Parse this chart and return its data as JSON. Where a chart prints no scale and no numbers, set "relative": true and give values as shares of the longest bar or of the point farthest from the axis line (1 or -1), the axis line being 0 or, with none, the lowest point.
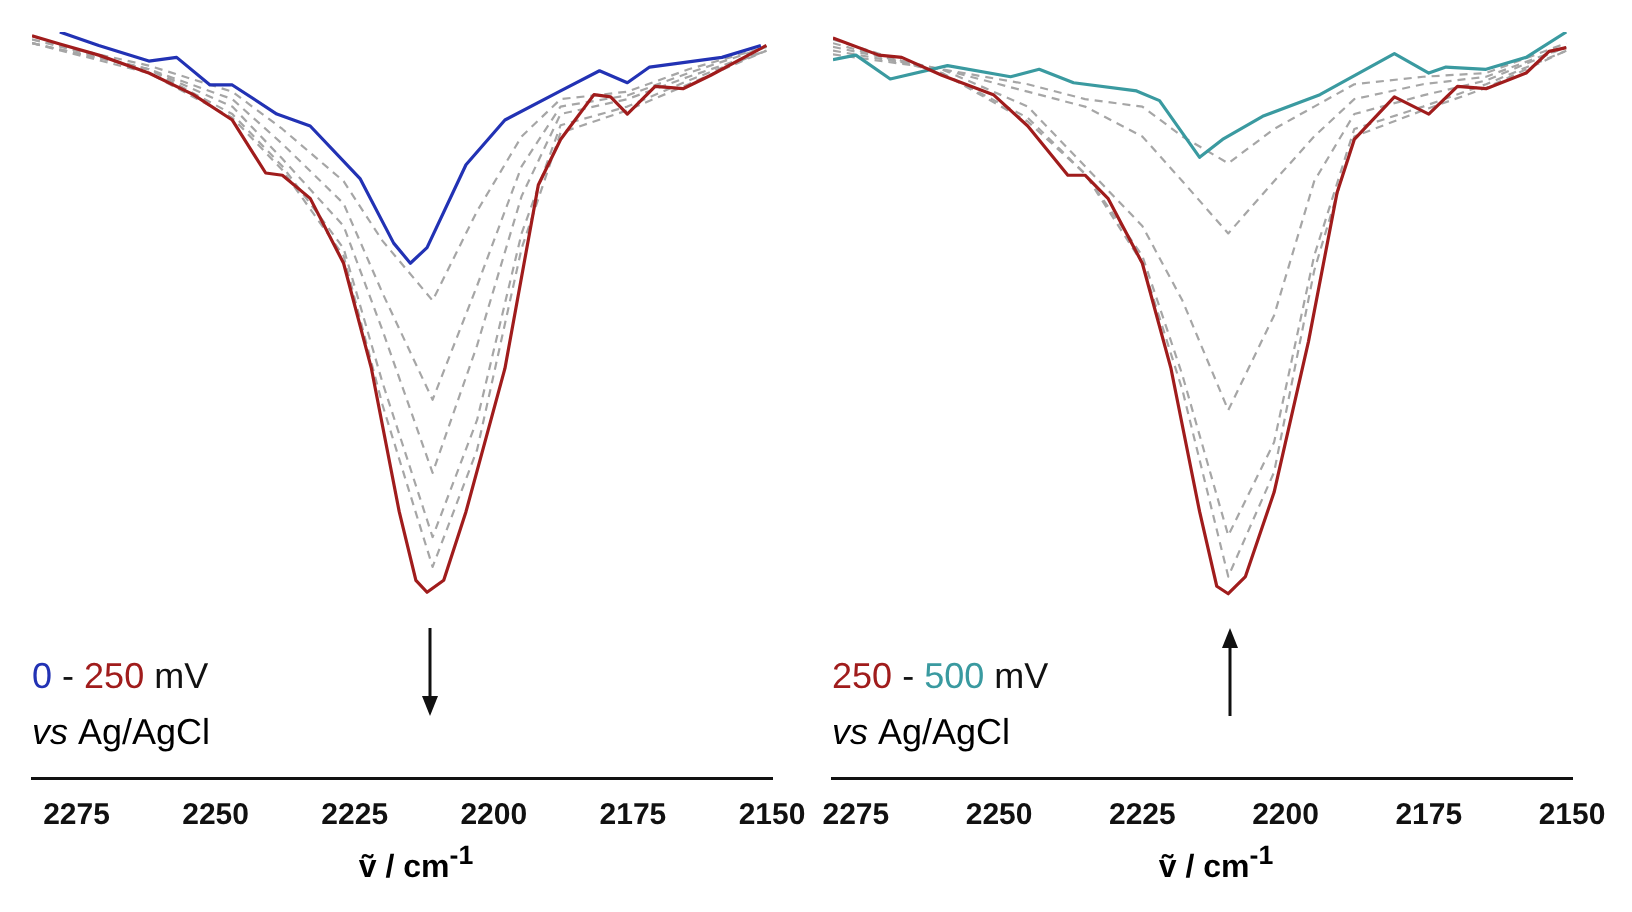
{
  "chart_data": [
    {
      "type": "line",
      "relative": true,
      "xlabel": "ṽ / cm$^{-1}$",
      "xlim": [
        2283,
        2150
      ],
      "xticks": [
        2275,
        2250,
        2225,
        2200,
        2175,
        2150
      ],
      "grid": false,
      "legend": false,
      "marker": "none",
      "annotations": [
        "0 - 250 mV",
        "vs Ag/AgCl"
      ],
      "series": [
        {
          "color": "#2232b4",
          "line_style": "solid",
          "x": [
            2278,
            2271,
            2262,
            2257,
            2251,
            2247,
            2239,
            2233,
            2224,
            2218,
            2215,
            2212,
            2205,
            2198,
            2188,
            2181,
            2176,
            2172,
            2159,
            2152
          ],
          "values": [
            1.0,
            0.982,
            0.961,
            0.966,
            0.929,
            0.929,
            0.89,
            0.874,
            0.803,
            0.717,
            0.69,
            0.711,
            0.822,
            0.882,
            0.921,
            0.948,
            0.932,
            0.953,
            0.966,
            0.982
          ]
        },
        {
          "color": "#a01c1c",
          "line_style": "solid",
          "x": [
            2283,
            2278,
            2271,
            2262,
            2254,
            2247,
            2241,
            2238,
            2233,
            2227,
            2222,
            2217,
            2214,
            2212,
            2209,
            2205,
            2198,
            2192,
            2188,
            2182,
            2179,
            2176,
            2171,
            2166,
            2161,
            2155,
            2151
          ],
          "values": [
            0.995,
            0.984,
            0.969,
            0.945,
            0.916,
            0.882,
            0.811,
            0.808,
            0.777,
            0.69,
            0.549,
            0.357,
            0.265,
            0.249,
            0.265,
            0.357,
            0.549,
            0.795,
            0.856,
            0.916,
            0.913,
            0.89,
            0.927,
            0.924,
            0.942,
            0.966,
            0.982
          ]
        },
        {
          "color": "#a6a6a6",
          "line_style": "dashed",
          "x": [
            2283,
            2262,
            2247,
            2238,
            2227,
            2220,
            2211,
            2203,
            2195,
            2188,
            2176,
            2165,
            2151
          ],
          "values": [
            0.99,
            0.955,
            0.92,
            0.87,
            0.8,
            0.72,
            0.64,
            0.76,
            0.86,
            0.91,
            0.92,
            0.95,
            0.98
          ]
        },
        {
          "color": "#a6a6a6",
          "line_style": "dashed",
          "x": [
            2283,
            2262,
            2247,
            2238,
            2227,
            2220,
            2211,
            2203,
            2195,
            2188,
            2176,
            2165,
            2151
          ],
          "values": [
            0.99,
            0.95,
            0.91,
            0.85,
            0.77,
            0.65,
            0.507,
            0.66,
            0.82,
            0.9,
            0.915,
            0.945,
            0.98
          ]
        },
        {
          "color": "#a6a6a6",
          "line_style": "dashed",
          "x": [
            2283,
            2262,
            2247,
            2238,
            2227,
            2220,
            2211,
            2203,
            2195,
            2188,
            2176,
            2165,
            2151
          ],
          "values": [
            0.985,
            0.95,
            0.9,
            0.83,
            0.74,
            0.6,
            0.409,
            0.58,
            0.78,
            0.89,
            0.91,
            0.94,
            0.975
          ]
        },
        {
          "color": "#a6a6a6",
          "line_style": "dashed",
          "x": [
            2283,
            2262,
            2247,
            2238,
            2227,
            2220,
            2211,
            2203,
            2195,
            2188,
            2176,
            2165,
            2151
          ],
          "values": [
            0.985,
            0.95,
            0.89,
            0.82,
            0.71,
            0.53,
            0.323,
            0.48,
            0.73,
            0.875,
            0.9,
            0.935,
            0.975
          ]
        },
        {
          "color": "#a6a6a6",
          "line_style": "dashed",
          "x": [
            2283,
            2262,
            2247,
            2238,
            2227,
            2220,
            2211,
            2203,
            2195,
            2188,
            2176,
            2165,
            2151
          ],
          "values": [
            0.985,
            0.945,
            0.885,
            0.815,
            0.7,
            0.5,
            0.283,
            0.44,
            0.71,
            0.865,
            0.895,
            0.93,
            0.975
          ]
        }
      ]
    },
    {
      "type": "line",
      "relative": true,
      "xlabel": "ṽ / cm$^{-1}$",
      "xlim": [
        2279,
        2150
      ],
      "xticks": [
        2275,
        2250,
        2225,
        2200,
        2175,
        2150
      ],
      "grid": false,
      "legend": false,
      "marker": "none",
      "annotations": [
        "250 - 500 mV",
        "vs Ag/AgCl"
      ],
      "series": [
        {
          "color": "#a01c1c",
          "line_style": "solid",
          "x": [
            2279,
            2271,
            2267,
            2260,
            2251,
            2245,
            2238,
            2235,
            2231,
            2225,
            2220,
            2215,
            2212,
            2210,
            2207,
            2202,
            2196,
            2191,
            2188,
            2181,
            2175,
            2170,
            2165,
            2158,
            2154,
            2151
          ],
          "values": [
            0.992,
            0.969,
            0.966,
            0.942,
            0.916,
            0.874,
            0.808,
            0.808,
            0.777,
            0.69,
            0.549,
            0.357,
            0.257,
            0.247,
            0.27,
            0.383,
            0.585,
            0.785,
            0.856,
            0.913,
            0.89,
            0.927,
            0.924,
            0.945,
            0.974,
            0.979
          ]
        },
        {
          "color": "#3a9aa0",
          "line_style": "solid",
          "x": [
            2279,
            2275,
            2269,
            2259,
            2248,
            2243,
            2237,
            2226,
            2222,
            2215,
            2211,
            2204,
            2194,
            2181,
            2175,
            2172,
            2165,
            2158,
            2151
          ],
          "values": [
            0.963,
            0.969,
            0.937,
            0.955,
            0.94,
            0.95,
            0.932,
            0.921,
            0.908,
            0.832,
            0.856,
            0.887,
            0.916,
            0.971,
            0.945,
            0.953,
            0.95,
            0.966,
            1.0
          ]
        },
        {
          "color": "#a6a6a6",
          "line_style": "dashed",
          "x": [
            2279,
            2260,
            2245,
            2235,
            2225,
            2218,
            2210,
            2202,
            2195,
            2188,
            2176,
            2165,
            2151
          ],
          "values": [
            0.97,
            0.95,
            0.93,
            0.91,
            0.9,
            0.86,
            0.824,
            0.87,
            0.9,
            0.93,
            0.94,
            0.945,
            0.985
          ]
        },
        {
          "color": "#a6a6a6",
          "line_style": "dashed",
          "x": [
            2279,
            2260,
            2245,
            2235,
            2225,
            2218,
            2210,
            2202,
            2195,
            2188,
            2176,
            2165,
            2151
          ],
          "values": [
            0.975,
            0.95,
            0.92,
            0.9,
            0.86,
            0.8,
            0.73,
            0.8,
            0.86,
            0.91,
            0.93,
            0.94,
            0.98
          ]
        },
        {
          "color": "#a6a6a6",
          "line_style": "dashed",
          "x": [
            2279,
            2260,
            2245,
            2235,
            2225,
            2218,
            2210,
            2202,
            2195,
            2188,
            2176,
            2165,
            2151
          ],
          "values": [
            0.98,
            0.95,
            0.9,
            0.82,
            0.74,
            0.64,
            0.493,
            0.62,
            0.8,
            0.89,
            0.915,
            0.935,
            0.98
          ]
        },
        {
          "color": "#a6a6a6",
          "line_style": "dashed",
          "x": [
            2279,
            2260,
            2245,
            2235,
            2225,
            2218,
            2210,
            2202,
            2195,
            2188,
            2176,
            2165,
            2151
          ],
          "values": [
            0.985,
            0.945,
            0.885,
            0.81,
            0.7,
            0.54,
            0.325,
            0.45,
            0.7,
            0.87,
            0.9,
            0.93,
            0.975
          ]
        },
        {
          "color": "#a6a6a6",
          "line_style": "dashed",
          "x": [
            2279,
            2260,
            2245,
            2235,
            2225,
            2218,
            2210,
            2202,
            2195,
            2188,
            2176,
            2165,
            2151
          ],
          "values": [
            0.99,
            0.945,
            0.88,
            0.81,
            0.69,
            0.52,
            0.27,
            0.41,
            0.68,
            0.86,
            0.895,
            0.925,
            0.975
          ]
        }
      ]
    }
  ]
}
